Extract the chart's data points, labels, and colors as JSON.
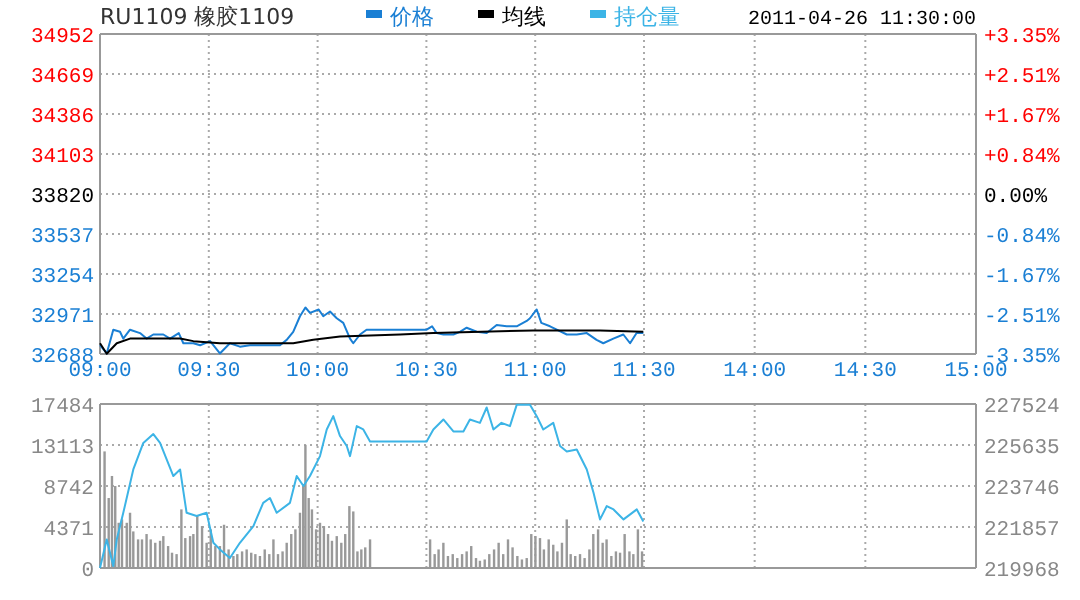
{
  "chart_data": [
    {
      "type": "line",
      "title": "RU1109 橡胶1109",
      "legend": "top",
      "grid": true,
      "xlim": [
        9,
        11.5
      ],
      "xticks": [
        {
          "value": 9,
          "label": "09:00"
        },
        {
          "value": 9.5,
          "label": "09:30"
        },
        {
          "value": 10,
          "label": "10:00"
        },
        {
          "value": 10.5,
          "label": "10:30"
        },
        {
          "value": 11,
          "label": "11:00"
        },
        {
          "value": 11.5,
          "label": "11:30"
        }
      ],
      "ylim": [
        32688,
        34952
      ],
      "yticks": [
        32688,
        32971,
        33254,
        33537,
        33820,
        34103,
        34386,
        34669,
        34952
      ],
      "series": [
        {
          "name": "价格",
          "color": "#1a7fd4",
          "x": [
            9,
            9.031,
            9.061,
            9.092,
            9.107,
            9.138,
            9.184,
            9.214,
            9.245,
            9.291,
            9.322,
            9.362,
            9.383,
            9.429,
            9.46,
            9.506,
            9.551,
            9.597,
            9.643,
            9.689,
            9.735,
            9.781,
            9.827,
            9.858,
            9.888,
            9.919,
            9.944,
            9.965,
            10.005,
            10.026,
            10.057,
            10.088,
            10.118,
            10.149,
            10.164,
            10.195,
            10.225,
            10.379,
            10.501,
            10.526,
            10.547,
            10.578,
            10.624,
            10.654,
            10.685,
            10.731,
            10.777,
            10.823,
            10.869,
            10.915,
            10.961,
            10.976,
            11.007,
            11.028,
            11.068,
            11.099,
            11.145,
            11.191,
            11.237,
            11.282,
            11.313,
            11.359,
            11.405,
            11.436,
            11.466,
            11.497
          ],
          "values": [
            32750,
            32692,
            32860,
            32845,
            32797,
            32860,
            32836,
            32797,
            32826,
            32826,
            32797,
            32836,
            32764,
            32764,
            32750,
            32779,
            32692,
            32764,
            32740,
            32750,
            32750,
            32750,
            32750,
            32788,
            32845,
            32955,
            33017,
            32979,
            33003,
            32955,
            32989,
            32941,
            32908,
            32797,
            32764,
            32826,
            32860,
            32860,
            32860,
            32884,
            32836,
            32826,
            32826,
            32845,
            32874,
            32845,
            32836,
            32893,
            32884,
            32884,
            32922,
            32941,
            33003,
            32908,
            32884,
            32860,
            32826,
            32826,
            32836,
            32788,
            32764,
            32797,
            32826,
            32764,
            32836,
            32836
          ]
        },
        {
          "name": "均线",
          "color": "#000000",
          "x": [
            9,
            9.031,
            9.077,
            9.138,
            9.368,
            9.429,
            9.551,
            9.888,
            9.98,
            10.103,
            10.379,
            10.532,
            10.991,
            11.298,
            11.497
          ],
          "values": [
            32764,
            32690,
            32764,
            32797,
            32797,
            32779,
            32764,
            32764,
            32788,
            32812,
            32826,
            32836,
            32855,
            32855,
            32845
          ]
        }
      ]
    },
    {
      "type": "line",
      "title": "2011-04-26 11:30:00",
      "grid": true,
      "xlim": [
        13.5,
        15
      ],
      "xticks": [
        {
          "value": 14,
          "label": "14:00"
        },
        {
          "value": 14.5,
          "label": "14:30"
        },
        {
          "value": 15,
          "label": "15:00"
        }
      ],
      "y2lim": [
        -3.35,
        3.35
      ],
      "y2ticks": [
        {
          "value": -3.35,
          "label": "-3.35%"
        },
        {
          "value": -2.51,
          "label": "-2.51%"
        },
        {
          "value": -1.67,
          "label": "-1.67%"
        },
        {
          "value": -0.84,
          "label": "-0.84%"
        },
        {
          "value": 0,
          "label": "0.00%"
        },
        {
          "value": 0.84,
          "label": "+0.84%"
        },
        {
          "value": 1.67,
          "label": "+1.67%"
        },
        {
          "value": 2.51,
          "label": "+2.51%"
        },
        {
          "value": 3.35,
          "label": "+3.35%"
        }
      ]
    },
    {
      "type": "bar",
      "legend": "top",
      "grid": true,
      "tick_labels": "y",
      "xlim": [
        9,
        11.5
      ],
      "xticks": [
        9,
        9.5,
        10,
        10.5,
        11,
        11.5
      ],
      "ylim": [
        0,
        17484
      ],
      "yticks": [
        0,
        4371,
        8742,
        13113,
        17484
      ],
      "y2lim": [
        219968,
        227524
      ],
      "series": [
        {
          "color": "#999999",
          "x": [
            9.021,
            9.04,
            9.055,
            9.07,
            9.086,
            9.101,
            9.123,
            9.138,
            9.153,
            9.175,
            9.193,
            9.214,
            9.233,
            9.254,
            9.276,
            9.291,
            9.313,
            9.331,
            9.352,
            9.374,
            9.392,
            9.414,
            9.429,
            9.447,
            9.469,
            9.49,
            9.509,
            9.53,
            9.551,
            9.57,
            9.591,
            9.613,
            9.631,
            9.653,
            9.674,
            9.695,
            9.714,
            9.735,
            9.757,
            9.778,
            9.797,
            9.818,
            9.839,
            9.858,
            9.879,
            9.898,
            9.919,
            9.934,
            9.944,
            9.959,
            9.974,
            9.993,
            10.011,
            10.029,
            10.048,
            10.066,
            10.088,
            10.109,
            10.127,
            10.146,
            10.164,
            10.183,
            10.201,
            10.219,
            10.241,
            10.517,
            10.538,
            10.556,
            10.578,
            10.599,
            10.621,
            10.642,
            10.664,
            10.685,
            10.706,
            10.728,
            10.746,
            10.768,
            10.789,
            10.811,
            10.832,
            10.853,
            10.875,
            10.896,
            10.918,
            10.939,
            10.961,
            10.982,
            11.001,
            11.022,
            11.04,
            11.062,
            11.083,
            11.102,
            11.123,
            11.145,
            11.163,
            11.184,
            11.206,
            11.227,
            11.249,
            11.267,
            11.289,
            11.31,
            11.328,
            11.35,
            11.371,
            11.39,
            11.411,
            11.433,
            11.451,
            11.472,
            11.491
          ],
          "values": [
            12430,
            7460,
            9810,
            8740,
            4820,
            5180,
            4820,
            5890,
            3900,
            3050,
            3050,
            3620,
            3050,
            2690,
            2900,
            3400,
            2340,
            1630,
            1480,
            6250,
            3190,
            3400,
            3620,
            5540,
            4470,
            2690,
            4120,
            2340,
            2340,
            4610,
            1980,
            1280,
            1480,
            1770,
            1980,
            1630,
            1480,
            1280,
            1980,
            1480,
            3050,
            1480,
            1770,
            2690,
            3620,
            4120,
            5890,
            8740,
            13130,
            7460,
            6250,
            4120,
            4820,
            4470,
            3620,
            2900,
            3400,
            2690,
            3620,
            6600,
            6030,
            1770,
            1980,
            2200,
            3050,
            3050,
            1480,
            1980,
            2690,
            1280,
            1480,
            1060,
            1480,
            1770,
            2340,
            1060,
            770,
            910,
            1480,
            1980,
            2690,
            1480,
            3050,
            2200,
            1280,
            910,
            1060,
            3620,
            3400,
            3190,
            1980,
            3050,
            2480,
            1770,
            2690,
            5180,
            1480,
            1280,
            1480,
            1060,
            1980,
            3620,
            4120,
            2690,
            3050,
            1280,
            1770,
            1630,
            3620,
            1770,
            1480,
            4120,
            1770
          ]
        },
        {
          "type": "line",
          "axis": "y2",
          "name": "持仓量",
          "color": "#3cb4e6",
          "x": [
            9,
            9.031,
            9.061,
            9.077,
            9.107,
            9.153,
            9.199,
            9.245,
            9.276,
            9.337,
            9.368,
            9.398,
            9.444,
            9.49,
            9.521,
            9.551,
            9.597,
            9.643,
            9.705,
            9.75,
            9.781,
            9.812,
            9.873,
            9.904,
            9.935,
            9.965,
            10.011,
            10.042,
            10.072,
            10.103,
            10.134,
            10.149,
            10.18,
            10.21,
            10.241,
            10.379,
            10.501,
            10.532,
            10.578,
            10.624,
            10.67,
            10.7,
            10.746,
            10.777,
            10.808,
            10.845,
            10.884,
            10.915,
            10.976,
            11.007,
            11.037,
            11.083,
            11.114,
            11.145,
            11.191,
            11.237,
            11.268,
            11.298,
            11.329,
            11.36,
            11.406,
            11.467,
            11.497
          ],
          "values": [
            219968,
            221285,
            220060,
            221285,
            222510,
            224508,
            225733,
            226139,
            225733,
            224205,
            224508,
            222510,
            222363,
            222510,
            221128,
            220825,
            220428,
            221128,
            221899,
            222970,
            223192,
            222510,
            222970,
            224205,
            223744,
            224205,
            225123,
            226350,
            226965,
            226047,
            225586,
            225123,
            226504,
            226350,
            225798,
            225798,
            225798,
            226350,
            226811,
            226258,
            226258,
            226811,
            226655,
            227364,
            226350,
            226655,
            226504,
            227484,
            227484,
            226965,
            226350,
            226655,
            225586,
            225337,
            225430,
            224508,
            223431,
            222206,
            222823,
            222667,
            222206,
            222667,
            222114
          ]
        }
      ]
    },
    {
      "type": "bar",
      "grid": true,
      "tick_labels": "y",
      "xlim": [
        13.5,
        15
      ],
      "xticks": [
        14,
        14.5,
        15
      ],
      "y2lim": [
        219968,
        227524
      ],
      "y2ticks": [
        219968,
        221857,
        223746,
        225635,
        227524
      ]
    }
  ]
}
